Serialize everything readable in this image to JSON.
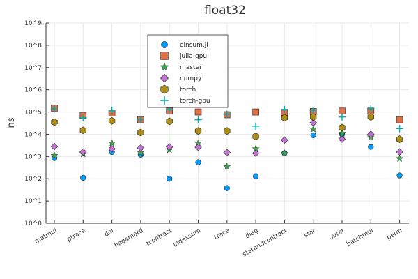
{
  "chart_data": {
    "type": "scatter",
    "title": "float32",
    "xlabel": "",
    "ylabel": "ns",
    "yscale": "log10",
    "ylim": [
      1,
      1000000000
    ],
    "grid": true,
    "legend_position": "top-center",
    "categories": [
      "matmul",
      "ptrace",
      "dot",
      "hadamard",
      "tcontract",
      "indexsum",
      "trace",
      "diag",
      "starandcontract",
      "star",
      "outer",
      "batchmul",
      "perm"
    ],
    "y_ticks": [
      {
        "value": 1,
        "label": "10^0"
      },
      {
        "value": 10,
        "label": "10^1"
      },
      {
        "value": 100,
        "label": "10^2"
      },
      {
        "value": 1000,
        "label": "10^3"
      },
      {
        "value": 10000,
        "label": "10^4"
      },
      {
        "value": 100000,
        "label": "10^5"
      },
      {
        "value": 1000000,
        "label": "10^6"
      },
      {
        "value": 10000000,
        "label": "10^7"
      },
      {
        "value": 100000000,
        "label": "10^8"
      },
      {
        "value": 1000000000,
        "label": "10^9"
      }
    ],
    "series": [
      {
        "name": "einsum.jl",
        "marker": "circle",
        "color": "#009AFA",
        "values": [
          850,
          110,
          1600,
          1200,
          100,
          550,
          38,
          130,
          1400,
          9000,
          10000,
          2700,
          140
        ]
      },
      {
        "name": "julia-gpu",
        "marker": "square",
        "color": "#E36F47",
        "values": [
          150000,
          70000,
          90000,
          45000,
          110000,
          100000,
          75000,
          100000,
          95000,
          105000,
          110000,
          110000,
          45000
        ]
      },
      {
        "name": "master",
        "marker": "star",
        "color": "#3EA44E",
        "values": [
          1100,
          1300,
          4000,
          1500,
          2000,
          4000,
          350,
          2200,
          1400,
          17000,
          11000,
          7500,
          800
        ]
      },
      {
        "name": "numpy",
        "marker": "diamond",
        "color": "#C371D2",
        "values": [
          2800,
          1600,
          2200,
          2400,
          2700,
          2600,
          1500,
          1400,
          5500,
          33000,
          6000,
          10000,
          1600
        ]
      },
      {
        "name": "torch",
        "marker": "hexagon",
        "color": "#AC8E18",
        "values": [
          35000,
          15000,
          40000,
          12000,
          38000,
          14000,
          14000,
          8000,
          55000,
          60000,
          20000,
          60000,
          6000
        ]
      },
      {
        "name": "torch-gpu",
        "marker": "plus",
        "color": "#00A9AD",
        "values": [
          140000,
          55000,
          120000,
          45000,
          130000,
          45000,
          80000,
          23000,
          130000,
          120000,
          60000,
          140000,
          18000
        ]
      }
    ]
  }
}
